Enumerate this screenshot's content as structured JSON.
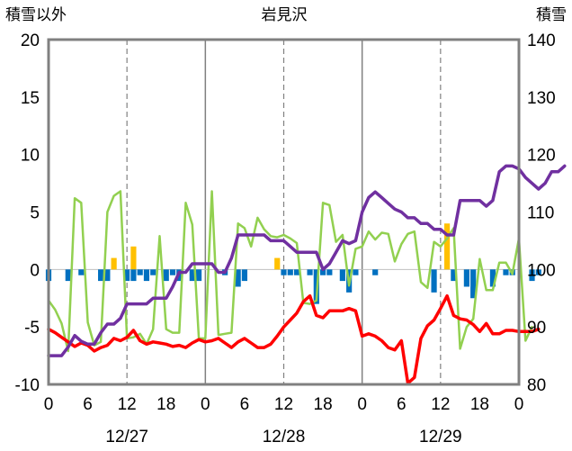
{
  "chart_data": {
    "type": "line",
    "title": "岩見沢",
    "left_axis_label": "積雪以外",
    "right_axis_label": "積雪",
    "y_left": {
      "min": -10,
      "max": 20,
      "ticks": [
        20,
        15,
        10,
        5,
        0,
        -5,
        -10
      ]
    },
    "y_right": {
      "min": 80,
      "max": 140,
      "ticks": [
        140,
        130,
        120,
        110,
        100,
        90,
        80
      ]
    },
    "x_hour_ticks": [
      "0",
      "6",
      "12",
      "18",
      "0",
      "6",
      "12",
      "18",
      "0",
      "6",
      "12",
      "18",
      "0"
    ],
    "dates": [
      "12/27",
      "12/28",
      "12/29"
    ],
    "grid": "dashed vertical lines at 12:00 each day; solid vertical lines at 00:00 day boundaries",
    "legend": "none",
    "x_unit": "hours since 12/27 00:00",
    "series": [
      {
        "key": "snow_depth",
        "axis": "right",
        "color": "#7030a0",
        "points": [
          [
            0,
            85
          ],
          [
            1,
            85
          ],
          [
            2,
            85
          ],
          [
            3,
            86.5
          ],
          [
            4,
            88.5
          ],
          [
            5,
            87.5
          ],
          [
            6,
            87
          ],
          [
            7,
            87
          ],
          [
            8,
            89
          ],
          [
            9,
            90.5
          ],
          [
            10,
            90.5
          ],
          [
            11,
            91.5
          ],
          [
            12,
            94
          ],
          [
            13,
            94
          ],
          [
            14,
            94
          ],
          [
            15,
            94
          ],
          [
            16,
            95
          ],
          [
            17,
            95
          ],
          [
            18,
            95
          ],
          [
            19,
            97
          ],
          [
            20,
            99.5
          ],
          [
            21,
            99.5
          ],
          [
            22,
            101
          ],
          [
            23,
            101
          ],
          [
            24,
            101
          ],
          [
            25,
            101
          ],
          [
            26,
            99.5
          ],
          [
            27,
            99.5
          ],
          [
            28,
            102
          ],
          [
            29,
            106
          ],
          [
            30,
            106
          ],
          [
            31,
            106
          ],
          [
            32,
            106
          ],
          [
            33,
            106
          ],
          [
            34,
            105
          ],
          [
            35,
            105
          ],
          [
            36,
            105
          ],
          [
            37,
            104
          ],
          [
            38,
            103
          ],
          [
            39,
            103
          ],
          [
            40,
            103
          ],
          [
            41,
            103
          ],
          [
            42,
            100
          ],
          [
            43,
            101
          ],
          [
            44,
            103
          ],
          [
            45,
            105
          ],
          [
            46,
            104.5
          ],
          [
            47,
            105
          ],
          [
            48,
            110
          ],
          [
            49,
            112.5
          ],
          [
            50,
            113.5
          ],
          [
            51,
            112.5
          ],
          [
            52,
            111.5
          ],
          [
            53,
            110.5
          ],
          [
            54,
            110
          ],
          [
            55,
            109
          ],
          [
            56,
            109
          ],
          [
            57,
            108
          ],
          [
            58,
            108
          ],
          [
            59,
            107
          ],
          [
            60,
            107
          ],
          [
            61,
            106
          ],
          [
            62,
            106
          ],
          [
            63,
            112
          ],
          [
            64,
            112
          ],
          [
            65,
            112
          ],
          [
            66,
            112
          ],
          [
            67,
            111
          ],
          [
            68,
            112
          ],
          [
            69,
            117
          ],
          [
            70,
            118
          ],
          [
            71,
            118
          ],
          [
            72,
            117.5
          ],
          [
            73,
            116
          ],
          [
            74,
            115
          ],
          [
            75,
            114
          ],
          [
            76,
            115
          ],
          [
            77,
            117
          ],
          [
            78,
            117
          ],
          [
            79,
            118
          ]
        ]
      },
      {
        "key": "temperature",
        "axis": "left",
        "color": "#ff0000",
        "points": [
          [
            0,
            -5.2
          ],
          [
            1,
            -5.5
          ],
          [
            2,
            -5.9
          ],
          [
            3,
            -6.3
          ],
          [
            4,
            -6.7
          ],
          [
            5,
            -6.4
          ],
          [
            6,
            -6.6
          ],
          [
            7,
            -7.1
          ],
          [
            8,
            -6.8
          ],
          [
            9,
            -6.6
          ],
          [
            10,
            -6.0
          ],
          [
            11,
            -6.2
          ],
          [
            12,
            -5.9
          ],
          [
            13,
            -5.3
          ],
          [
            14,
            -6.2
          ],
          [
            15,
            -6.5
          ],
          [
            16,
            -6.3
          ],
          [
            17,
            -6.4
          ],
          [
            18,
            -6.5
          ],
          [
            19,
            -6.7
          ],
          [
            20,
            -6.6
          ],
          [
            21,
            -6.8
          ],
          [
            22,
            -6.4
          ],
          [
            23,
            -6.1
          ],
          [
            24,
            -6.3
          ],
          [
            25,
            -6.2
          ],
          [
            26,
            -6.0
          ],
          [
            27,
            -6.4
          ],
          [
            28,
            -6.8
          ],
          [
            29,
            -6.3
          ],
          [
            30,
            -6.0
          ],
          [
            31,
            -6.4
          ],
          [
            32,
            -6.8
          ],
          [
            33,
            -6.8
          ],
          [
            34,
            -6.5
          ],
          [
            35,
            -5.8
          ],
          [
            36,
            -5.0
          ],
          [
            37,
            -4.4
          ],
          [
            38,
            -3.8
          ],
          [
            39,
            -2.8
          ],
          [
            40,
            -2.3
          ],
          [
            41,
            -4.0
          ],
          [
            42,
            -4.2
          ],
          [
            43,
            -3.6
          ],
          [
            44,
            -3.6
          ],
          [
            45,
            -3.6
          ],
          [
            46,
            -3.4
          ],
          [
            47,
            -3.6
          ],
          [
            48,
            -5.8
          ],
          [
            49,
            -5.6
          ],
          [
            50,
            -5.8
          ],
          [
            51,
            -6.2
          ],
          [
            52,
            -6.8
          ],
          [
            53,
            -7.0
          ],
          [
            54,
            -6.2
          ],
          [
            55,
            -9.9
          ],
          [
            56,
            -9.4
          ],
          [
            57,
            -6.0
          ],
          [
            58,
            -4.9
          ],
          [
            59,
            -4.4
          ],
          [
            60,
            -3.4
          ],
          [
            61,
            -2.3
          ],
          [
            62,
            -4.0
          ],
          [
            63,
            -4.3
          ],
          [
            64,
            -4.4
          ],
          [
            65,
            -4.8
          ],
          [
            66,
            -5.4
          ],
          [
            67,
            -4.7
          ],
          [
            68,
            -5.6
          ],
          [
            69,
            -5.6
          ],
          [
            70,
            -5.3
          ],
          [
            71,
            -5.3
          ],
          [
            72,
            -5.4
          ],
          [
            73,
            -5.4
          ],
          [
            74,
            -5.4
          ],
          [
            75,
            -5.2
          ]
        ]
      },
      {
        "key": "wind_speed",
        "axis": "left",
        "color": "#92d050",
        "points": [
          [
            0,
            -2.7
          ],
          [
            1,
            -3.5
          ],
          [
            2,
            -4.7
          ],
          [
            3,
            -7.1
          ],
          [
            4,
            6.2
          ],
          [
            5,
            5.8
          ],
          [
            6,
            -4.6
          ],
          [
            7,
            -6.6
          ],
          [
            8,
            -6.3
          ],
          [
            9,
            5.0
          ],
          [
            10,
            6.4
          ],
          [
            11,
            6.8
          ],
          [
            12,
            -6.0
          ],
          [
            13,
            -5.9
          ],
          [
            14,
            -5.6
          ],
          [
            15,
            -6.5
          ],
          [
            16,
            -5.2
          ],
          [
            17,
            2.9
          ],
          [
            18,
            -5.2
          ],
          [
            19,
            -5.5
          ],
          [
            20,
            -5.5
          ],
          [
            21,
            5.8
          ],
          [
            22,
            3.9
          ],
          [
            23,
            -6.0
          ],
          [
            24,
            -6.0
          ],
          [
            25,
            6.8
          ],
          [
            26,
            -5.7
          ],
          [
            27,
            -5.6
          ],
          [
            28,
            -5.5
          ],
          [
            29,
            4.0
          ],
          [
            30,
            3.6
          ],
          [
            31,
            2.0
          ],
          [
            32,
            4.5
          ],
          [
            33,
            3.5
          ],
          [
            34,
            2.9
          ],
          [
            35,
            2.8
          ],
          [
            36,
            3.0
          ],
          [
            37,
            2.7
          ],
          [
            38,
            2.3
          ],
          [
            39,
            -2.9
          ],
          [
            40,
            -3.0
          ],
          [
            41,
            -2.7
          ],
          [
            42,
            5.8
          ],
          [
            43,
            5.6
          ],
          [
            44,
            2.4
          ],
          [
            45,
            3.0
          ],
          [
            46,
            -1.4
          ],
          [
            47,
            1.8
          ],
          [
            48,
            2.0
          ],
          [
            49,
            3.3
          ],
          [
            50,
            2.6
          ],
          [
            51,
            3.2
          ],
          [
            52,
            3.1
          ],
          [
            53,
            0.7
          ],
          [
            54,
            2.2
          ],
          [
            55,
            3.1
          ],
          [
            56,
            3.3
          ],
          [
            57,
            -1.1
          ],
          [
            58,
            -1.6
          ],
          [
            59,
            2.4
          ],
          [
            60,
            2.0
          ],
          [
            61,
            2.7
          ],
          [
            62,
            3.6
          ],
          [
            63,
            -6.9
          ],
          [
            64,
            -5.0
          ],
          [
            65,
            -4.3
          ],
          [
            66,
            0.9
          ],
          [
            67,
            -1.8
          ],
          [
            68,
            -1.8
          ],
          [
            69,
            0.6
          ],
          [
            70,
            0.6
          ],
          [
            71,
            -0.4
          ],
          [
            72,
            2.7
          ],
          [
            73,
            -6.2
          ],
          [
            74,
            -5.0
          ]
        ]
      }
    ],
    "precipitation_bars": {
      "axis": "left",
      "color": "#ffc000",
      "hours": [
        10,
        13,
        26,
        35,
        61
      ],
      "values": [
        1.0,
        2.0,
        0.0,
        1.0,
        4.0
      ]
    },
    "snow_change_bars": {
      "axis": "left",
      "color": "#0070c0",
      "hours": [
        0,
        3,
        5,
        8,
        9,
        12,
        13,
        14,
        15,
        16,
        18,
        19,
        20,
        22,
        23,
        27,
        29,
        30,
        36,
        37,
        38,
        40,
        41,
        42,
        43,
        45,
        46,
        47,
        50,
        59,
        62,
        64,
        65,
        68,
        70,
        71,
        74,
        75
      ],
      "values": [
        -1.0,
        -1.0,
        -0.5,
        -1.0,
        -1.0,
        -1.0,
        -1.0,
        -0.5,
        -1.0,
        -0.5,
        -1.0,
        -0.5,
        -1.0,
        -1.0,
        -1.0,
        -0.5,
        -1.5,
        -1.0,
        -0.5,
        -0.5,
        -0.5,
        -0.5,
        -3.0,
        -0.5,
        -0.5,
        -1.0,
        -2.0,
        -0.5,
        -0.5,
        -2.0,
        -1.0,
        -1.5,
        -2.5,
        -1.5,
        -0.5,
        -0.5,
        -1.0,
        -0.5
      ]
    }
  }
}
